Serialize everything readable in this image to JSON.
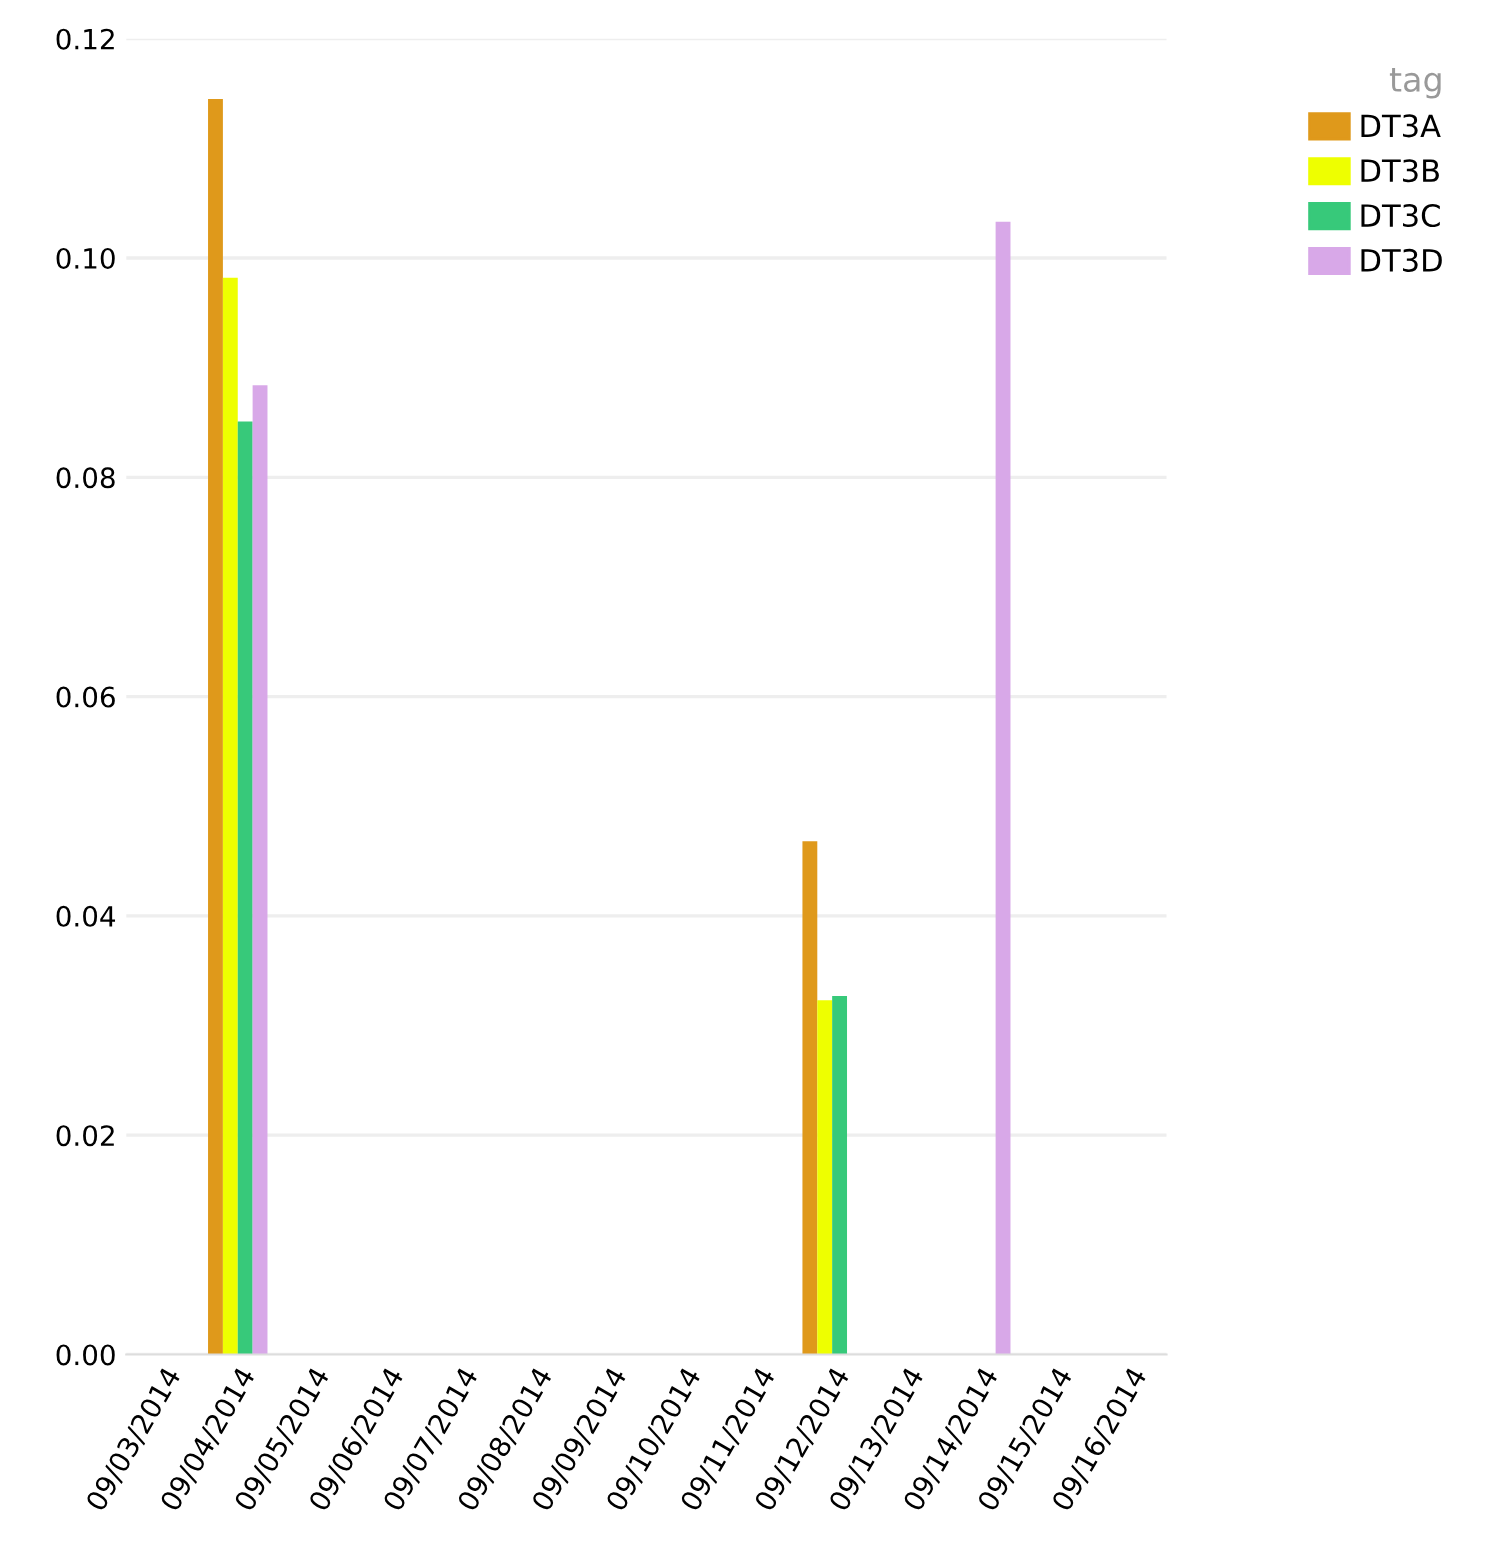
{
  "chart_data": {
    "type": "bar",
    "legend_title": "tag",
    "legend": "top right",
    "grid": "y",
    "categories": [
      "09/03/2014",
      "09/04/2014",
      "09/05/2014",
      "09/06/2014",
      "09/07/2014",
      "09/08/2014",
      "09/09/2014",
      "09/10/2014",
      "09/11/2014",
      "09/12/2014",
      "09/13/2014",
      "09/14/2014",
      "09/15/2014",
      "09/16/2014"
    ],
    "series": [
      {
        "name": "DT3A",
        "color": "#df991b",
        "values": [
          null,
          0.1145,
          null,
          null,
          null,
          null,
          null,
          null,
          null,
          0.0468,
          null,
          null,
          null,
          null
        ]
      },
      {
        "name": "DT3B",
        "color": "#eeff00",
        "values": [
          null,
          0.0982,
          null,
          null,
          null,
          null,
          null,
          null,
          null,
          0.0323,
          null,
          null,
          null,
          null
        ]
      },
      {
        "name": "DT3C",
        "color": "#37c97a",
        "values": [
          null,
          0.0851,
          null,
          null,
          null,
          null,
          null,
          null,
          null,
          0.0327,
          null,
          null,
          null,
          null
        ]
      },
      {
        "name": "DT3D",
        "color": "#d8a8e8",
        "values": [
          null,
          0.0884,
          null,
          null,
          null,
          null,
          null,
          null,
          null,
          null,
          null,
          0.1033,
          null,
          null
        ]
      }
    ],
    "ylim": [
      0,
      0.12
    ],
    "yticks": [
      {
        "value": 0,
        "label": "0.00"
      },
      {
        "value": 0.02,
        "label": "0.02"
      },
      {
        "value": 0.04,
        "label": "0.04"
      },
      {
        "value": 0.06,
        "label": "0.06"
      },
      {
        "value": 0.08,
        "label": "0.08"
      },
      {
        "value": 0.1,
        "label": "0.10"
      },
      {
        "value": 0.12,
        "label": "0.12"
      }
    ]
  }
}
